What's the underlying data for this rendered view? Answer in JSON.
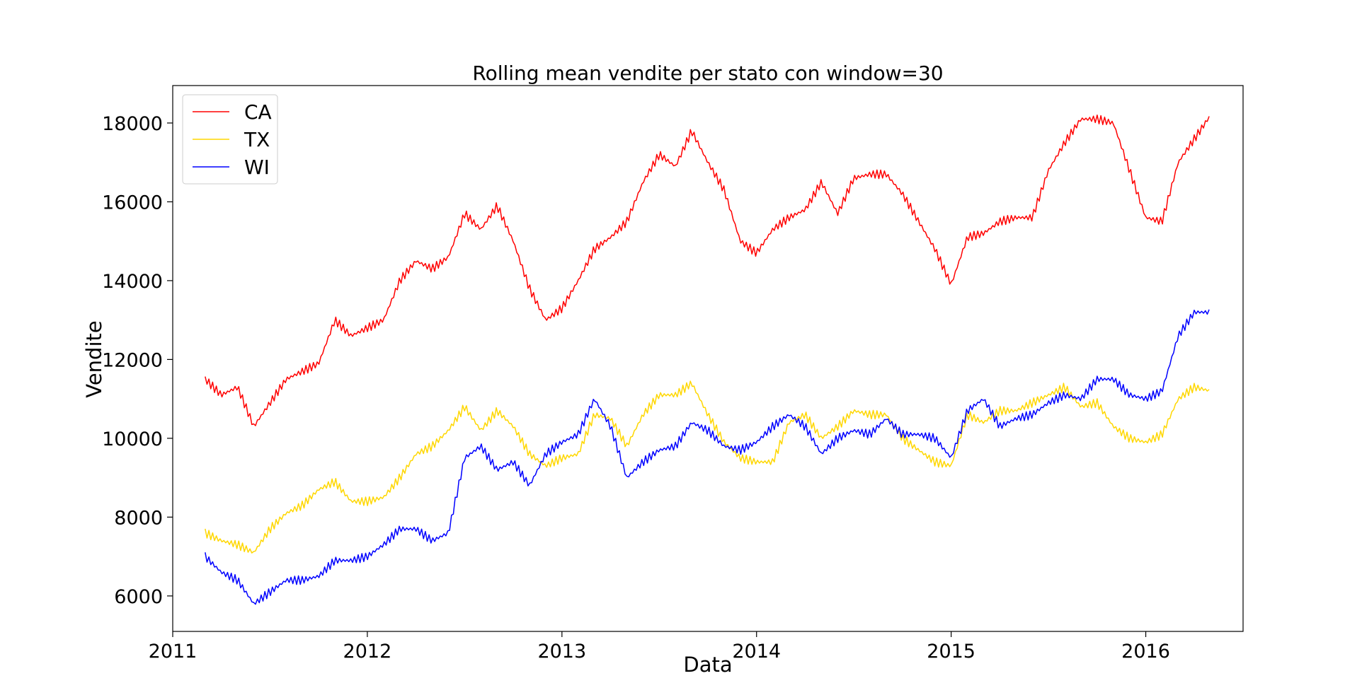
{
  "chart_data": {
    "type": "line",
    "title": "Rolling mean vendite per stato con window=30",
    "xlabel": "Data",
    "ylabel": "Vendite",
    "x_ticks": [
      "2011",
      "2012",
      "2013",
      "2014",
      "2015",
      "2016"
    ],
    "y_ticks": [
      "6000",
      "8000",
      "10000",
      "12000",
      "14000",
      "16000",
      "18000"
    ],
    "xlim": [
      "2011-01",
      "2016-07"
    ],
    "ylim": [
      5100,
      18950
    ],
    "grid": false,
    "legend_position": "top-left",
    "series": [
      {
        "name": "CA",
        "color": "#ff0000",
        "points": [
          [
            "2011-03-01",
            11500
          ],
          [
            "2011-04-01",
            11100
          ],
          [
            "2011-05-01",
            11300
          ],
          [
            "2011-06-01",
            10300
          ],
          [
            "2011-07-01",
            10900
          ],
          [
            "2011-08-01",
            11500
          ],
          [
            "2011-09-01",
            11700
          ],
          [
            "2011-10-01",
            11900
          ],
          [
            "2011-11-01",
            13000
          ],
          [
            "2011-12-01",
            12600
          ],
          [
            "2012-01-01",
            12800
          ],
          [
            "2012-02-01",
            13000
          ],
          [
            "2012-03-01",
            14000
          ],
          [
            "2012-04-01",
            14500
          ],
          [
            "2012-05-01",
            14300
          ],
          [
            "2012-06-01",
            14600
          ],
          [
            "2012-07-01",
            15700
          ],
          [
            "2012-08-01",
            15300
          ],
          [
            "2012-09-01",
            15900
          ],
          [
            "2012-10-01",
            15000
          ],
          [
            "2012-11-01",
            13800
          ],
          [
            "2012-12-01",
            13000
          ],
          [
            "2013-01-01",
            13300
          ],
          [
            "2013-02-01",
            14000
          ],
          [
            "2013-03-01",
            14800
          ],
          [
            "2013-04-01",
            15100
          ],
          [
            "2013-05-01",
            15500
          ],
          [
            "2013-06-01",
            16500
          ],
          [
            "2013-07-01",
            17200
          ],
          [
            "2013-08-01",
            16900
          ],
          [
            "2013-09-01",
            17800
          ],
          [
            "2013-10-01",
            17000
          ],
          [
            "2013-11-01",
            16300
          ],
          [
            "2013-12-01",
            15000
          ],
          [
            "2014-01-01",
            14700
          ],
          [
            "2014-02-01",
            15300
          ],
          [
            "2014-03-01",
            15600
          ],
          [
            "2014-04-01",
            15800
          ],
          [
            "2014-05-01",
            16500
          ],
          [
            "2014-06-01",
            15700
          ],
          [
            "2014-07-01",
            16600
          ],
          [
            "2014-08-01",
            16700
          ],
          [
            "2014-09-01",
            16700
          ],
          [
            "2014-10-01",
            16200
          ],
          [
            "2014-11-01",
            15500
          ],
          [
            "2014-12-01",
            14800
          ],
          [
            "2015-01-01",
            13900
          ],
          [
            "2015-02-01",
            15100
          ],
          [
            "2015-03-01",
            15200
          ],
          [
            "2015-04-01",
            15500
          ],
          [
            "2015-05-01",
            15600
          ],
          [
            "2015-06-01",
            15600
          ],
          [
            "2015-07-01",
            16800
          ],
          [
            "2015-08-01",
            17500
          ],
          [
            "2015-09-01",
            18100
          ],
          [
            "2015-10-01",
            18100
          ],
          [
            "2015-11-01",
            18000
          ],
          [
            "2015-12-01",
            16800
          ],
          [
            "2016-01-01",
            15600
          ],
          [
            "2016-02-01",
            15500
          ],
          [
            "2016-03-01",
            17000
          ],
          [
            "2016-04-01",
            17600
          ],
          [
            "2016-05-01",
            18200
          ]
        ]
      },
      {
        "name": "TX",
        "color": "#ffd700",
        "points": [
          [
            "2011-03-01",
            7600
          ],
          [
            "2011-04-01",
            7400
          ],
          [
            "2011-05-01",
            7300
          ],
          [
            "2011-06-01",
            7100
          ],
          [
            "2011-07-01",
            7700
          ],
          [
            "2011-08-01",
            8100
          ],
          [
            "2011-09-01",
            8300
          ],
          [
            "2011-10-01",
            8700
          ],
          [
            "2011-11-01",
            8900
          ],
          [
            "2011-12-01",
            8400
          ],
          [
            "2012-01-01",
            8400
          ],
          [
            "2012-02-01",
            8500
          ],
          [
            "2012-03-01",
            9000
          ],
          [
            "2012-04-01",
            9600
          ],
          [
            "2012-05-01",
            9800
          ],
          [
            "2012-06-01",
            10200
          ],
          [
            "2012-07-01",
            10800
          ],
          [
            "2012-08-01",
            10200
          ],
          [
            "2012-09-01",
            10700
          ],
          [
            "2012-10-01",
            10300
          ],
          [
            "2012-11-01",
            9600
          ],
          [
            "2012-12-01",
            9300
          ],
          [
            "2013-01-01",
            9500
          ],
          [
            "2013-02-01",
            9600
          ],
          [
            "2013-03-01",
            10600
          ],
          [
            "2013-04-01",
            10500
          ],
          [
            "2013-05-01",
            9800
          ],
          [
            "2013-06-01",
            10600
          ],
          [
            "2013-07-01",
            11100
          ],
          [
            "2013-08-01",
            11100
          ],
          [
            "2013-09-01",
            11400
          ],
          [
            "2013-10-01",
            10600
          ],
          [
            "2013-11-01",
            9900
          ],
          [
            "2013-12-01",
            9500
          ],
          [
            "2014-01-01",
            9400
          ],
          [
            "2014-02-01",
            9400
          ],
          [
            "2014-03-01",
            10400
          ],
          [
            "2014-04-01",
            10600
          ],
          [
            "2014-05-01",
            10000
          ],
          [
            "2014-06-01",
            10300
          ],
          [
            "2014-07-01",
            10700
          ],
          [
            "2014-08-01",
            10600
          ],
          [
            "2014-09-01",
            10600
          ],
          [
            "2014-10-01",
            10000
          ],
          [
            "2014-11-01",
            9700
          ],
          [
            "2014-12-01",
            9400
          ],
          [
            "2015-01-01",
            9300
          ],
          [
            "2015-02-01",
            10600
          ],
          [
            "2015-03-01",
            10400
          ],
          [
            "2015-04-01",
            10700
          ],
          [
            "2015-05-01",
            10700
          ],
          [
            "2015-06-01",
            10900
          ],
          [
            "2015-07-01",
            11100
          ],
          [
            "2015-08-01",
            11300
          ],
          [
            "2015-09-01",
            10800
          ],
          [
            "2015-10-01",
            10900
          ],
          [
            "2015-11-01",
            10300
          ],
          [
            "2015-12-01",
            10000
          ],
          [
            "2016-01-01",
            9900
          ],
          [
            "2016-02-01",
            10100
          ],
          [
            "2016-03-01",
            11000
          ],
          [
            "2016-04-01",
            11300
          ],
          [
            "2016-05-01",
            11200
          ]
        ]
      },
      {
        "name": "WI",
        "color": "#0000ff",
        "points": [
          [
            "2011-03-01",
            7000
          ],
          [
            "2011-04-01",
            6600
          ],
          [
            "2011-05-01",
            6400
          ],
          [
            "2011-06-01",
            5800
          ],
          [
            "2011-07-01",
            6100
          ],
          [
            "2011-08-01",
            6400
          ],
          [
            "2011-09-01",
            6400
          ],
          [
            "2011-10-01",
            6500
          ],
          [
            "2011-11-01",
            6900
          ],
          [
            "2011-12-01",
            6900
          ],
          [
            "2012-01-01",
            7000
          ],
          [
            "2012-02-01",
            7300
          ],
          [
            "2012-03-01",
            7700
          ],
          [
            "2012-04-01",
            7700
          ],
          [
            "2012-05-01",
            7400
          ],
          [
            "2012-06-01",
            7600
          ],
          [
            "2012-07-01",
            9500
          ],
          [
            "2012-08-01",
            9800
          ],
          [
            "2012-09-01",
            9200
          ],
          [
            "2012-10-01",
            9400
          ],
          [
            "2012-11-01",
            8800
          ],
          [
            "2012-12-01",
            9600
          ],
          [
            "2013-01-01",
            9900
          ],
          [
            "2013-02-01",
            10100
          ],
          [
            "2013-03-01",
            11000
          ],
          [
            "2013-04-01",
            10300
          ],
          [
            "2013-05-01",
            9000
          ],
          [
            "2013-06-01",
            9400
          ],
          [
            "2013-07-01",
            9700
          ],
          [
            "2013-08-01",
            9800
          ],
          [
            "2013-09-01",
            10400
          ],
          [
            "2013-10-01",
            10200
          ],
          [
            "2013-11-01",
            9800
          ],
          [
            "2013-12-01",
            9700
          ],
          [
            "2014-01-01",
            9900
          ],
          [
            "2014-02-01",
            10300
          ],
          [
            "2014-03-01",
            10600
          ],
          [
            "2014-04-01",
            10300
          ],
          [
            "2014-05-01",
            9600
          ],
          [
            "2014-06-01",
            10000
          ],
          [
            "2014-07-01",
            10200
          ],
          [
            "2014-08-01",
            10100
          ],
          [
            "2014-09-01",
            10500
          ],
          [
            "2014-10-01",
            10100
          ],
          [
            "2014-11-01",
            10100
          ],
          [
            "2014-12-01",
            10000
          ],
          [
            "2015-01-01",
            9500
          ],
          [
            "2015-02-01",
            10700
          ],
          [
            "2015-03-01",
            11000
          ],
          [
            "2015-04-01",
            10300
          ],
          [
            "2015-05-01",
            10500
          ],
          [
            "2015-06-01",
            10600
          ],
          [
            "2015-07-01",
            10900
          ],
          [
            "2015-08-01",
            11100
          ],
          [
            "2015-09-01",
            11000
          ],
          [
            "2015-10-01",
            11500
          ],
          [
            "2015-11-01",
            11500
          ],
          [
            "2015-12-01",
            11100
          ],
          [
            "2016-01-01",
            11000
          ],
          [
            "2016-02-01",
            11200
          ],
          [
            "2016-03-01",
            12600
          ],
          [
            "2016-04-01",
            13200
          ],
          [
            "2016-05-01",
            13200
          ]
        ]
      }
    ]
  }
}
